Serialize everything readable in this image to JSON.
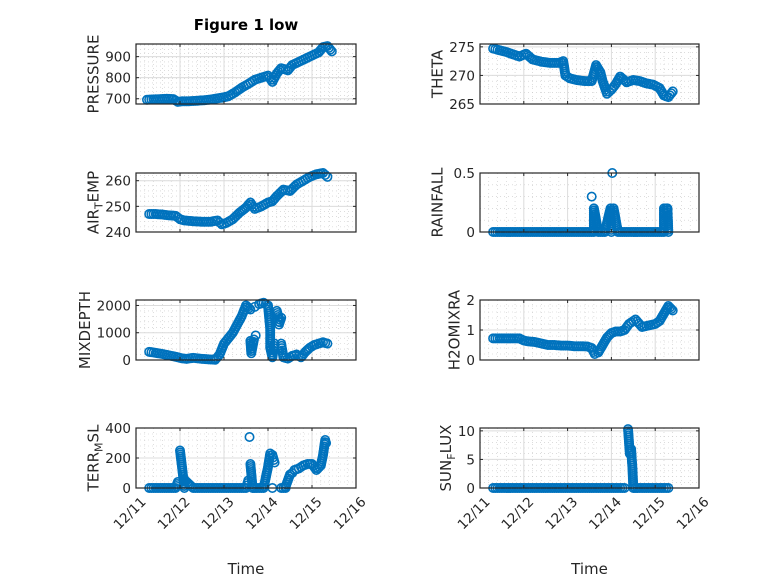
{
  "figure_title": "Figure 1 low",
  "colors": {
    "marker": "#0072BD",
    "axes": "#262626",
    "grid": "#dcdcdc",
    "background": "#ffffff"
  },
  "chart_data": [
    {
      "type": "scatter",
      "panel": "top-left",
      "title": "Figure 1 low",
      "ylabel_parts": [
        {
          "t": "PRESSURE"
        }
      ],
      "xlabel": "",
      "xlim": [
        0,
        5
      ],
      "ylim": [
        675,
        960
      ],
      "yticks": [
        700,
        800,
        900
      ],
      "ytick_labels": [
        "700",
        "800",
        "900"
      ],
      "xticks": [
        0,
        1,
        2,
        3,
        4,
        5
      ],
      "xtick_labels": [],
      "grid": true,
      "minor_grid": true,
      "series": [
        {
          "name": "PRESSURE",
          "x": [
            0.25,
            0.4,
            0.55,
            0.7,
            0.85,
            0.95,
            1.05,
            1.2,
            1.35,
            1.5,
            1.65,
            1.8,
            1.95,
            2.1,
            2.25,
            2.4,
            2.55,
            2.7,
            2.85,
            3.0,
            3.1,
            3.2,
            3.3,
            3.45,
            3.55,
            3.7,
            3.85,
            4.0,
            4.15,
            4.25,
            4.35,
            4.45
          ],
          "y": [
            695,
            697,
            698,
            700,
            698,
            685,
            688,
            688,
            690,
            692,
            695,
            700,
            705,
            712,
            730,
            752,
            770,
            790,
            800,
            810,
            780,
            820,
            845,
            835,
            860,
            875,
            890,
            905,
            920,
            945,
            950,
            925
          ]
        }
      ]
    },
    {
      "type": "scatter",
      "panel": "top-right",
      "ylabel_parts": [
        {
          "t": "THETA"
        }
      ],
      "xlabel": "",
      "xlim": [
        0,
        5
      ],
      "ylim": [
        265,
        275.5
      ],
      "yticks": [
        265,
        270,
        275
      ],
      "ytick_labels": [
        "265",
        "270",
        "275"
      ],
      "xticks": [
        0,
        1,
        2,
        3,
        4,
        5
      ],
      "xtick_labels": [],
      "grid": true,
      "minor_grid": true,
      "series": [
        {
          "name": "THETA",
          "x": [
            0.3,
            0.45,
            0.6,
            0.75,
            0.9,
            1.05,
            1.2,
            1.4,
            1.6,
            1.8,
            1.9,
            1.95,
            2.05,
            2.2,
            2.4,
            2.55,
            2.65,
            2.75,
            2.8,
            2.9,
            3.0,
            3.1,
            3.2,
            3.35,
            3.5,
            3.65,
            3.8,
            3.95,
            4.1,
            4.2,
            4.3,
            4.4
          ],
          "y": [
            274.7,
            274.4,
            274.1,
            273.7,
            273.3,
            273.8,
            272.8,
            272.4,
            272.2,
            272.2,
            272.5,
            270.0,
            269.5,
            269.2,
            269.0,
            269.0,
            271.8,
            270.5,
            269.0,
            266.8,
            267.5,
            268.5,
            269.8,
            268.8,
            269.2,
            269.0,
            268.6,
            268.4,
            267.8,
            266.5,
            266.2,
            267.2
          ]
        }
      ]
    },
    {
      "type": "scatter",
      "panel": "row2-left",
      "ylabel_parts": [
        {
          "t": "AIR"
        },
        {
          "t": "T",
          "sub": true
        },
        {
          "t": "EMP"
        }
      ],
      "xlabel": "",
      "xlim": [
        0,
        5
      ],
      "ylim": [
        240,
        263
      ],
      "yticks": [
        240,
        250,
        260
      ],
      "ytick_labels": [
        "240",
        "250",
        "260"
      ],
      "xticks": [
        0,
        1,
        2,
        3,
        4,
        5
      ],
      "xtick_labels": [],
      "grid": true,
      "minor_grid": true,
      "series": [
        {
          "name": "AIR_TEMP",
          "x": [
            0.3,
            0.45,
            0.6,
            0.75,
            0.9,
            1.0,
            1.1,
            1.3,
            1.5,
            1.7,
            1.85,
            1.95,
            2.05,
            2.2,
            2.35,
            2.5,
            2.6,
            2.7,
            2.85,
            3.0,
            3.1,
            3.2,
            3.35,
            3.5,
            3.65,
            3.8,
            3.95,
            4.1,
            4.25,
            4.35
          ],
          "y": [
            247.0,
            247.0,
            246.8,
            246.5,
            246.3,
            245.0,
            244.5,
            244.2,
            244.0,
            244.0,
            244.5,
            243.0,
            243.5,
            245.0,
            247.5,
            249.5,
            251.5,
            249.0,
            250.0,
            251.5,
            252.0,
            254.0,
            256.5,
            256.0,
            258.5,
            260.0,
            261.5,
            262.5,
            263.0,
            261.5
          ]
        }
      ]
    },
    {
      "type": "scatter",
      "panel": "row2-right",
      "ylabel_parts": [
        {
          "t": "RAINFALL"
        }
      ],
      "xlabel": "",
      "xlim": [
        0,
        5
      ],
      "ylim": [
        0,
        0.5
      ],
      "yticks": [
        0,
        0.5
      ],
      "ytick_labels": [
        "0",
        "0.5"
      ],
      "xticks": [
        0,
        1,
        2,
        3,
        4,
        5
      ],
      "xtick_labels": [],
      "grid": true,
      "minor_grid": true,
      "series": [
        {
          "name": "RAINFALL",
          "x": [
            0.3,
            0.45,
            0.6,
            0.75,
            0.9,
            1.05,
            1.2,
            1.35,
            1.5,
            1.65,
            1.8,
            1.95,
            2.1,
            2.25,
            2.4,
            2.55,
            2.6,
            2.7,
            2.85,
            3.0,
            3.15,
            3.3,
            3.45,
            3.6,
            3.75,
            3.9,
            4.05,
            4.2,
            4.3,
            2.55,
            2.6,
            2.98,
            3.05,
            3.02,
            4.2,
            4.25,
            4.28
          ],
          "y": [
            0,
            0,
            0,
            0,
            0,
            0,
            0,
            0,
            0,
            0,
            0,
            0,
            0,
            0,
            0,
            0,
            0,
            0,
            0,
            0,
            0,
            0,
            0,
            0,
            0,
            0,
            0,
            0,
            0,
            0.3,
            0.2,
            0.2,
            0.2,
            0.5,
            0.2,
            0.2,
            0.2
          ]
        }
      ]
    },
    {
      "type": "scatter",
      "panel": "row3-left",
      "ylabel_parts": [
        {
          "t": "MIXDEPTH"
        }
      ],
      "xlabel": "",
      "xlim": [
        0,
        5
      ],
      "ylim": [
        0,
        2200
      ],
      "yticks": [
        0,
        1000,
        2000
      ],
      "ytick_labels": [
        "0",
        "1000",
        "2000"
      ],
      "xticks": [
        0,
        1,
        2,
        3,
        4,
        5
      ],
      "xtick_labels": [],
      "grid": true,
      "minor_grid": true,
      "series": [
        {
          "name": "MIXDEPTH",
          "x": [
            0.3,
            0.45,
            0.6,
            0.75,
            0.9,
            1.05,
            1.15,
            1.3,
            1.5,
            1.7,
            1.8,
            1.9,
            2.0,
            2.1,
            2.2,
            2.3,
            2.4,
            2.5,
            2.6,
            2.7,
            2.8,
            2.9,
            3.0,
            3.05,
            2.6,
            2.62,
            2.68,
            2.72,
            3.05,
            3.1,
            3.15,
            3.2,
            3.25,
            3.25,
            3.3,
            3.3,
            3.35,
            3.45,
            3.55,
            3.65,
            3.75,
            3.85,
            3.95,
            4.05,
            4.15,
            4.25,
            4.35
          ],
          "y": [
            300,
            260,
            220,
            170,
            120,
            60,
            40,
            80,
            40,
            20,
            10,
            200,
            600,
            800,
            1000,
            1300,
            1600,
            2000,
            1850,
            1950,
            2050,
            2100,
            2000,
            1150,
            700,
            250,
            750,
            900,
            450,
            100,
            600,
            1800,
            1500,
            1300,
            1550,
            600,
            100,
            50,
            150,
            200,
            100,
            300,
            450,
            550,
            600,
            650,
            600
          ]
        }
      ]
    },
    {
      "type": "scatter",
      "panel": "row3-right",
      "ylabel_parts": [
        {
          "t": "H2OMIXRA"
        }
      ],
      "xlabel": "",
      "xlim": [
        0,
        5
      ],
      "ylim": [
        0,
        2
      ],
      "yticks": [
        0,
        1,
        2
      ],
      "ytick_labels": [
        "0",
        "1",
        "2"
      ],
      "xticks": [
        0,
        1,
        2,
        3,
        4,
        5
      ],
      "xtick_labels": [],
      "grid": true,
      "minor_grid": true,
      "series": [
        {
          "name": "H2OMIXRA",
          "x": [
            0.3,
            0.45,
            0.6,
            0.75,
            0.9,
            1.0,
            1.1,
            1.25,
            1.4,
            1.55,
            1.7,
            1.85,
            2.0,
            2.15,
            2.3,
            2.45,
            2.55,
            2.62,
            2.7,
            2.8,
            2.9,
            3.0,
            3.1,
            3.2,
            3.3,
            3.4,
            3.55,
            3.7,
            3.85,
            4.0,
            4.1,
            4.2,
            4.3,
            4.4
          ],
          "y": [
            0.72,
            0.72,
            0.72,
            0.72,
            0.72,
            0.65,
            0.62,
            0.6,
            0.55,
            0.5,
            0.5,
            0.48,
            0.48,
            0.46,
            0.46,
            0.45,
            0.4,
            0.2,
            0.25,
            0.5,
            0.75,
            0.9,
            0.95,
            0.95,
            1.0,
            1.2,
            1.35,
            1.1,
            1.15,
            1.2,
            1.3,
            1.55,
            1.8,
            1.65
          ]
        }
      ]
    },
    {
      "type": "scatter",
      "panel": "row4-left",
      "ylabel_parts": [
        {
          "t": "TERR"
        },
        {
          "t": "M",
          "sub": true
        },
        {
          "t": "SL"
        }
      ],
      "xlabel": "Time",
      "xlim": [
        0,
        5
      ],
      "ylim": [
        0,
        400
      ],
      "yticks": [
        0,
        200,
        400
      ],
      "ytick_labels": [
        "0",
        "200",
        "400"
      ],
      "xticks": [
        0,
        1,
        2,
        3,
        4,
        5
      ],
      "xtick_labels": [
        "12/11",
        "12/12",
        "12/13",
        "12/14",
        "12/15",
        "12/16"
      ],
      "grid": true,
      "minor_grid": true,
      "series": [
        {
          "name": "TERR_MSL",
          "x": [
            0.3,
            0.5,
            0.7,
            0.9,
            1.1,
            1.3,
            1.5,
            1.7,
            1.9,
            2.1,
            2.3,
            2.5,
            2.7,
            2.9,
            3.1,
            3.3,
            3.4,
            0.95,
            1.0,
            1.05,
            1.1,
            2.55,
            2.58,
            2.6,
            2.65,
            3.0,
            3.05,
            3.1,
            3.15,
            3.4,
            3.45,
            3.5,
            3.55,
            3.6,
            3.7,
            3.8,
            3.9,
            4.0,
            4.1,
            4.2,
            4.25,
            4.3,
            4.32
          ],
          "y": [
            0,
            0,
            0,
            0,
            0,
            0,
            0,
            0,
            0,
            0,
            0,
            0,
            0,
            0,
            0,
            0,
            0,
            40,
            250,
            130,
            55,
            50,
            340,
            160,
            0,
            140,
            230,
            220,
            170,
            10,
            50,
            90,
            100,
            120,
            130,
            150,
            160,
            160,
            120,
            150,
            220,
            320,
            300
          ]
        }
      ]
    },
    {
      "type": "scatter",
      "panel": "row4-right",
      "ylabel_parts": [
        {
          "t": "SUN"
        },
        {
          "t": "F",
          "sub": true
        },
        {
          "t": "LUX"
        }
      ],
      "xlabel": "Time",
      "xlim": [
        0,
        5
      ],
      "ylim": [
        0,
        10.5
      ],
      "yticks": [
        0,
        5,
        10
      ],
      "ytick_labels": [
        "0",
        "5",
        "10"
      ],
      "xticks": [
        0,
        1,
        2,
        3,
        4,
        5
      ],
      "xtick_labels": [
        "12/11",
        "12/12",
        "12/13",
        "12/14",
        "12/15",
        "12/16"
      ],
      "grid": true,
      "minor_grid": true,
      "series": [
        {
          "name": "SUN_FLUX",
          "x": [
            0.3,
            0.5,
            0.7,
            0.9,
            1.1,
            1.3,
            1.5,
            1.7,
            1.9,
            2.1,
            2.3,
            2.5,
            2.7,
            2.9,
            3.1,
            3.3,
            3.5,
            3.7,
            3.9,
            4.1,
            4.3,
            3.38,
            3.45,
            3.48,
            3.42
          ],
          "y": [
            0,
            0,
            0,
            0,
            0,
            0,
            0,
            0,
            0,
            0,
            0,
            0,
            0,
            0,
            0,
            0,
            0,
            0,
            0,
            0,
            0,
            10.3,
            6.8,
            3.5,
            6.0
          ]
        }
      ]
    }
  ]
}
